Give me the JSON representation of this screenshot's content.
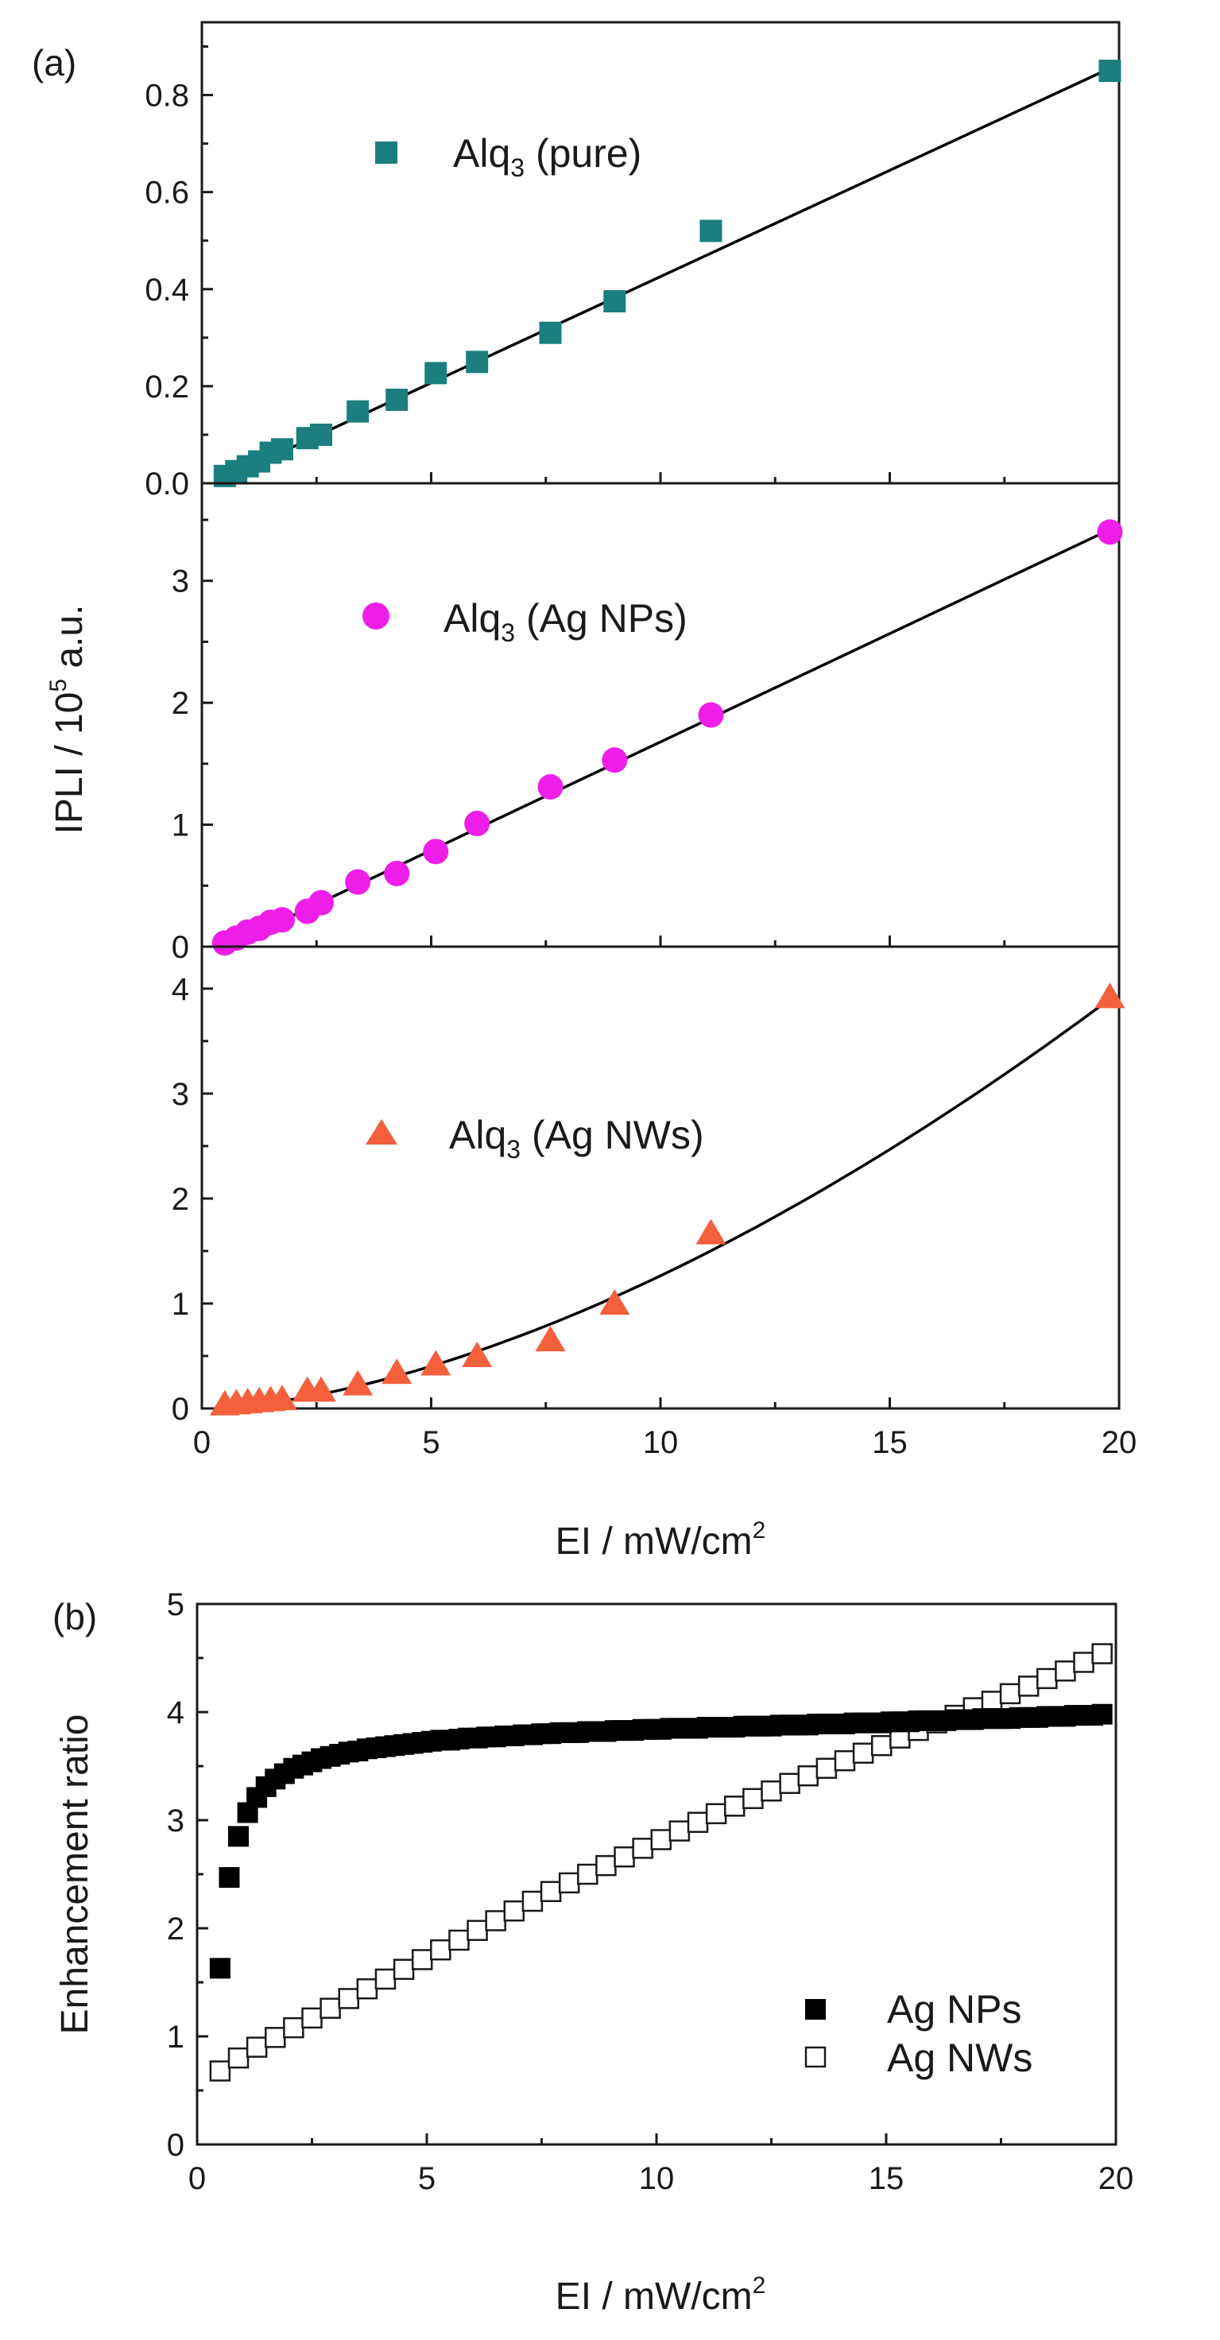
{
  "colors": {
    "pure": "#1a7f7e",
    "nps": "#ee1ee8",
    "nws": "#f4603c",
    "fit": "#000000",
    "axis": "#1a1a1a"
  },
  "figure_a": {
    "panel_label": "(a)",
    "ylabel_main": "IPLI / 10",
    "ylabel_sup": "5",
    "ylabel_unit": " a.u.",
    "xlabel_main": "EI / mW/cm",
    "xlabel_sup": "2"
  },
  "figure_b": {
    "panel_label": "(b)",
    "ylabel": "Enhancement ratio",
    "xlabel_main": "EI / mW/cm",
    "xlabel_sup": "2"
  },
  "legends": {
    "pure": {
      "base": "Alq",
      "sub": "3",
      "suffix": " (pure)"
    },
    "nps": {
      "base": "Alq",
      "sub": "3",
      "suffix": " (Ag NPs)"
    },
    "nws": {
      "base": "Alq",
      "sub": "3",
      "suffix": " (Ag NWs)"
    },
    "b_nps": "Ag NPs",
    "b_nws": "Ag NWs"
  },
  "chart_data": [
    {
      "id": "a_pure",
      "type": "scatter",
      "series_name": "Alq3 (pure)",
      "marker": "square",
      "x": [
        0.5,
        0.75,
        1.0,
        1.25,
        1.5,
        1.75,
        2.3,
        2.6,
        3.4,
        4.25,
        5.1,
        6.0,
        7.6,
        9.0,
        11.1,
        19.8
      ],
      "y": [
        0.015,
        0.025,
        0.035,
        0.045,
        0.063,
        0.07,
        0.093,
        0.1,
        0.148,
        0.172,
        0.227,
        0.25,
        0.31,
        0.375,
        0.52,
        0.85
      ],
      "fit": {
        "kind": "linear",
        "x": [
          0.55,
          19.8
        ],
        "y": [
          0.012,
          0.855
        ]
      },
      "xlim": [
        0,
        20
      ],
      "ylim": [
        0,
        0.95
      ],
      "yticks": [
        0.0,
        0.2,
        0.4,
        0.6,
        0.8
      ],
      "ytick_labels": [
        "0.0",
        "0.2",
        "0.4",
        "0.6",
        "0.8"
      ]
    },
    {
      "id": "a_nps",
      "type": "scatter",
      "series_name": "Alq3 (Ag NPs)",
      "marker": "circle",
      "x": [
        0.5,
        0.75,
        1.0,
        1.25,
        1.5,
        1.75,
        2.3,
        2.6,
        3.4,
        4.25,
        5.1,
        6.0,
        7.6,
        9.0,
        11.1,
        19.8
      ],
      "y": [
        0.03,
        0.07,
        0.12,
        0.15,
        0.2,
        0.22,
        0.29,
        0.36,
        0.53,
        0.6,
        0.78,
        1.01,
        1.31,
        1.53,
        1.9,
        3.4
      ],
      "fit": {
        "kind": "linear",
        "x": [
          0.55,
          19.8
        ],
        "y": [
          0.0,
          3.42
        ]
      },
      "xlim": [
        0,
        20
      ],
      "ylim": [
        0,
        3.8
      ],
      "yticks": [
        0,
        1,
        2,
        3
      ],
      "ytick_labels": [
        "0",
        "1",
        "2",
        "3"
      ]
    },
    {
      "id": "a_nws",
      "type": "scatter",
      "series_name": "Alq3 (Ag NWs)",
      "marker": "triangle",
      "x": [
        0.5,
        0.75,
        1.0,
        1.25,
        1.5,
        1.75,
        2.3,
        2.6,
        3.4,
        4.25,
        5.1,
        6.0,
        7.6,
        9.0,
        11.1,
        19.8
      ],
      "y": [
        0.04,
        0.05,
        0.06,
        0.07,
        0.08,
        0.09,
        0.17,
        0.17,
        0.23,
        0.34,
        0.42,
        0.5,
        0.65,
        1.0,
        1.67,
        3.92
      ],
      "fit": {
        "kind": "power",
        "a": 0.0283,
        "b": 1.65,
        "x_start": 0.55,
        "x_end": 19.8
      },
      "xlim": [
        0,
        20
      ],
      "xticks": [
        0,
        5,
        10,
        15,
        20
      ],
      "xtick_labels": [
        "0",
        "5",
        "10",
        "15",
        "20"
      ],
      "ylim": [
        0,
        4.4
      ],
      "yticks": [
        0,
        1,
        2,
        3,
        4
      ],
      "ytick_labels": [
        "0",
        "1",
        "2",
        "3",
        "4"
      ]
    },
    {
      "id": "b",
      "type": "scatter",
      "xlim": [
        0,
        20
      ],
      "xticks": [
        0,
        5,
        10,
        15,
        20
      ],
      "xtick_labels": [
        "0",
        "5",
        "10",
        "15",
        "20"
      ],
      "ylim": [
        0,
        5
      ],
      "yticks": [
        0,
        1,
        2,
        3,
        4,
        5
      ],
      "ytick_labels": [
        "0",
        "1",
        "2",
        "3",
        "4",
        "5"
      ],
      "legend_position": "bottom-right",
      "series": [
        {
          "name": "Ag NPs",
          "marker": "filled-square",
          "x": [
            0.5,
            0.7,
            0.9,
            1.1,
            1.3,
            1.5,
            1.7,
            1.9,
            2.1,
            2.3,
            2.5,
            2.7,
            2.9,
            3.1,
            3.3,
            3.5,
            3.7,
            3.9,
            4.1,
            4.3,
            4.5,
            4.7,
            4.9,
            5.1,
            5.3,
            5.5,
            5.7,
            5.9,
            6.1,
            6.3,
            6.5,
            6.7,
            6.9,
            7.1,
            7.3,
            7.5,
            7.7,
            7.9,
            8.1,
            8.3,
            8.5,
            8.7,
            8.9,
            9.1,
            9.3,
            9.5,
            9.7,
            9.9,
            10.1,
            10.3,
            10.5,
            10.7,
            10.9,
            11.1,
            11.3,
            11.5,
            11.7,
            11.9,
            12.1,
            12.3,
            12.5,
            12.7,
            12.9,
            13.1,
            13.3,
            13.5,
            13.7,
            13.9,
            14.1,
            14.3,
            14.5,
            14.7,
            14.9,
            15.1,
            15.3,
            15.5,
            15.7,
            15.9,
            16.1,
            16.3,
            16.5,
            16.7,
            16.9,
            17.1,
            17.3,
            17.5,
            17.7,
            17.9,
            18.1,
            18.3,
            18.5,
            18.7,
            18.9,
            19.1,
            19.3,
            19.5,
            19.7
          ],
          "y": [
            1.63,
            2.47,
            2.85,
            3.07,
            3.21,
            3.31,
            3.38,
            3.43,
            3.48,
            3.51,
            3.54,
            3.57,
            3.59,
            3.61,
            3.63,
            3.64,
            3.66,
            3.67,
            3.68,
            3.69,
            3.7,
            3.71,
            3.72,
            3.73,
            3.74,
            3.74,
            3.75,
            3.76,
            3.76,
            3.77,
            3.77,
            3.78,
            3.78,
            3.79,
            3.79,
            3.8,
            3.8,
            3.81,
            3.81,
            3.81,
            3.82,
            3.82,
            3.82,
            3.83,
            3.83,
            3.83,
            3.84,
            3.84,
            3.84,
            3.85,
            3.85,
            3.85,
            3.85,
            3.86,
            3.86,
            3.86,
            3.86,
            3.87,
            3.87,
            3.87,
            3.87,
            3.88,
            3.88,
            3.88,
            3.88,
            3.89,
            3.89,
            3.89,
            3.89,
            3.9,
            3.9,
            3.9,
            3.9,
            3.91,
            3.91,
            3.91,
            3.92,
            3.92,
            3.92,
            3.92,
            3.93,
            3.93,
            3.93,
            3.94,
            3.94,
            3.94,
            3.94,
            3.95,
            3.95,
            3.95,
            3.96,
            3.96,
            3.96,
            3.97,
            3.97,
            3.97,
            3.98
          ]
        },
        {
          "name": "Ag NWs",
          "marker": "open-square",
          "x": [
            0.5,
            0.9,
            1.3,
            1.7,
            2.1,
            2.5,
            2.9,
            3.3,
            3.7,
            4.1,
            4.5,
            4.9,
            5.3,
            5.7,
            6.1,
            6.5,
            6.9,
            7.3,
            7.7,
            8.1,
            8.5,
            8.9,
            9.3,
            9.7,
            10.1,
            10.5,
            10.9,
            11.3,
            11.7,
            12.1,
            12.5,
            12.9,
            13.3,
            13.7,
            14.1,
            14.5,
            14.9,
            15.3,
            15.7,
            16.1,
            16.5,
            16.9,
            17.3,
            17.7,
            18.1,
            18.5,
            18.9,
            19.3,
            19.7
          ],
          "y": [
            0.68,
            0.8,
            0.9,
            0.99,
            1.08,
            1.17,
            1.26,
            1.35,
            1.44,
            1.53,
            1.62,
            1.71,
            1.8,
            1.89,
            1.98,
            2.07,
            2.16,
            2.25,
            2.34,
            2.42,
            2.5,
            2.58,
            2.66,
            2.74,
            2.82,
            2.9,
            2.98,
            3.06,
            3.13,
            3.2,
            3.27,
            3.34,
            3.41,
            3.48,
            3.55,
            3.62,
            3.69,
            3.76,
            3.83,
            3.9,
            3.97,
            4.04,
            4.1,
            4.17,
            4.24,
            4.31,
            4.38,
            4.46,
            4.54
          ]
        }
      ]
    }
  ]
}
